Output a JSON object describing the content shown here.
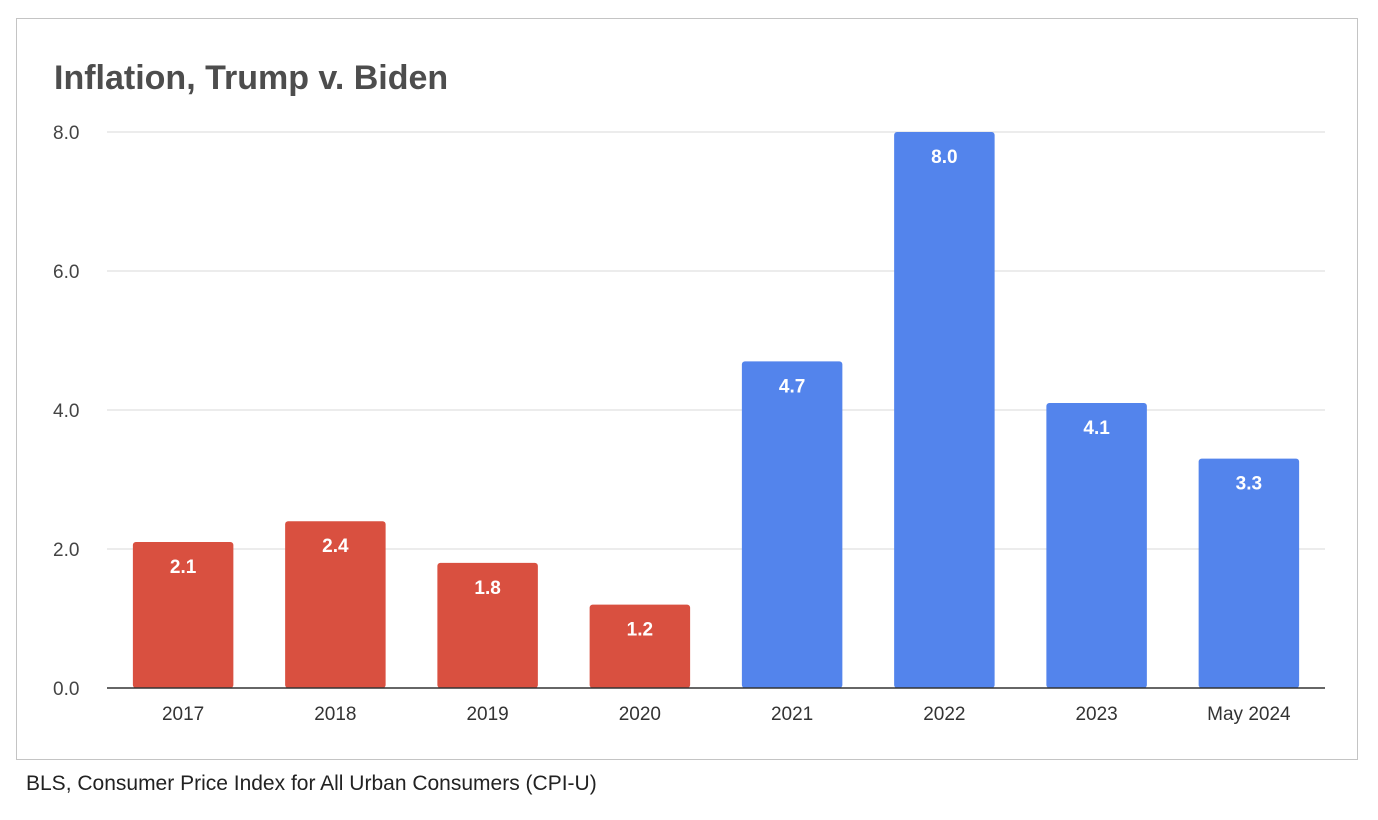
{
  "caption": "BLS, Consumer Price Index for All Urban Consumers (CPI-U)",
  "colors": {
    "trump": "#d95040",
    "biden": "#5384ec",
    "grid": "#d9d9d9",
    "axis": "#333333"
  },
  "chart_data": {
    "type": "bar",
    "title": "Inflation, Trump v. Biden",
    "xlabel": "",
    "ylabel": "",
    "categories": [
      "2017",
      "2018",
      "2019",
      "2020",
      "2021",
      "2022",
      "2023",
      "May 2024"
    ],
    "values": [
      2.1,
      2.4,
      1.8,
      1.2,
      4.7,
      8.0,
      4.1,
      3.3
    ],
    "bar_colors": [
      "#d95040",
      "#d95040",
      "#d95040",
      "#d95040",
      "#5384ec",
      "#5384ec",
      "#5384ec",
      "#5384ec"
    ],
    "data_labels": [
      "2.1",
      "2.4",
      "1.8",
      "1.2",
      "4.7",
      "8.0",
      "4.1",
      "3.3"
    ],
    "ylim": [
      0,
      8
    ],
    "yticks": [
      0,
      2,
      4,
      6,
      8
    ],
    "ytick_labels": [
      "0.0",
      "2.0",
      "4.0",
      "6.0",
      "8.0"
    ],
    "grid": true,
    "legend": "none"
  }
}
